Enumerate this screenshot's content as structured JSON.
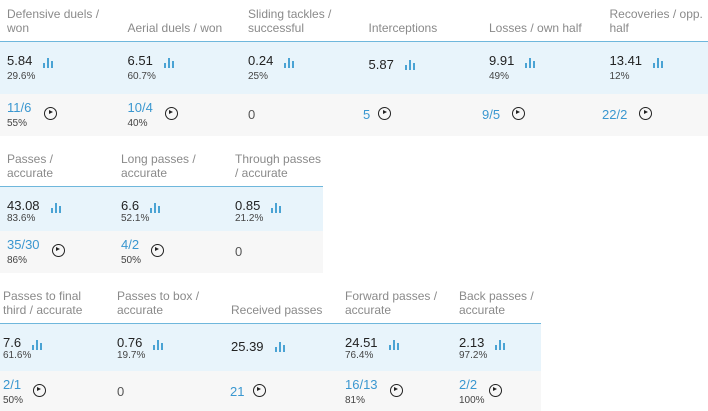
{
  "defensive": [
    {
      "header": "Defensive duels / won",
      "avg": "5.84",
      "avg_pct": "29.6%",
      "total": "11/6",
      "total_pct": "55%",
      "total_link": true,
      "video": true
    },
    {
      "header": "Aerial duels / won",
      "avg": "6.51",
      "avg_pct": "60.7%",
      "total": "10/4",
      "total_pct": "40%",
      "total_link": true,
      "video": true
    },
    {
      "header": "Sliding tackles / successful",
      "avg": "0.24",
      "avg_pct": "25%",
      "total": "0",
      "total_pct": "",
      "total_link": false,
      "video": false
    },
    {
      "header": "Interceptions",
      "avg": "5.87",
      "avg_pct": "",
      "total": "5",
      "total_pct": "",
      "total_link": true,
      "video": true
    },
    {
      "header": "Losses / own half",
      "avg": "9.91",
      "avg_pct": "49%",
      "total": "9/5",
      "total_pct": "",
      "total_link": true,
      "video": true
    },
    {
      "header": "Recoveries / opp. half",
      "avg": "13.41",
      "avg_pct": "12%",
      "total": "22/2",
      "total_pct": "",
      "total_link": true,
      "video": true
    }
  ],
  "passing": [
    {
      "header": "Passes / accurate",
      "avg": "43.08",
      "avg_pct": "83.6%",
      "total": "35/30",
      "total_pct": "86%",
      "total_link": true,
      "video": true
    },
    {
      "header": "Long passes / accurate",
      "avg": "6.6",
      "avg_pct": "52.1%",
      "total": "4/2",
      "total_pct": "50%",
      "total_link": true,
      "video": true
    },
    {
      "header": "Through passes / accurate",
      "avg": "0.85",
      "avg_pct": "21.2%",
      "total": "0",
      "total_pct": "",
      "total_link": false,
      "video": false
    }
  ],
  "advanced": [
    {
      "header": "Passes to final third / accurate",
      "avg": "7.6",
      "avg_pct": "61.6%",
      "total": "2/1",
      "total_pct": "50%",
      "total_link": true,
      "video": true
    },
    {
      "header": "Passes to box / accurate",
      "avg": "0.76",
      "avg_pct": "19.7%",
      "total": "0",
      "total_pct": "",
      "total_link": false,
      "video": false
    },
    {
      "header": "Received passes",
      "avg": "25.39",
      "avg_pct": "",
      "total": "21",
      "total_pct": "",
      "total_link": true,
      "video": true
    },
    {
      "header": "Forward passes / accurate",
      "avg": "24.51",
      "avg_pct": "76.4%",
      "total": "16/13",
      "total_pct": "81%",
      "total_link": true,
      "video": true
    },
    {
      "header": "Back passes / accurate",
      "avg": "2.13",
      "avg_pct": "97.2%",
      "total": "2/2",
      "total_pct": "100%",
      "total_link": true,
      "video": true
    }
  ]
}
